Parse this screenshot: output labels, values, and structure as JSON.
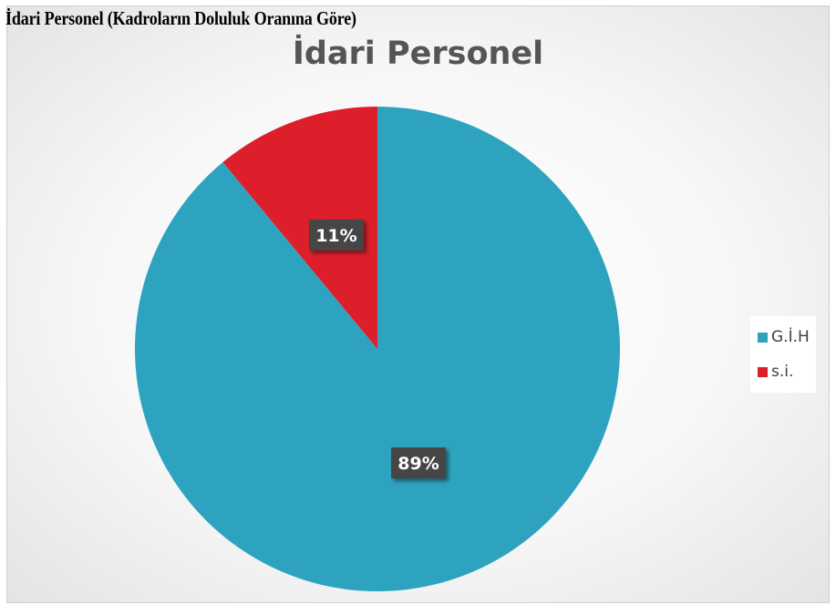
{
  "heading": "İdari Personel (Kadroların Doluluk Oranına Göre)",
  "chart_data": {
    "type": "pie",
    "title": "İdari Personel",
    "legend_position": "right",
    "slices": [
      {
        "label": "G.İ.H",
        "value": 89,
        "data_label": "89%",
        "color": "#2ea3c0"
      },
      {
        "label": "s.i.",
        "value": 11,
        "data_label": "11%",
        "color": "#dd1f2b"
      }
    ]
  }
}
